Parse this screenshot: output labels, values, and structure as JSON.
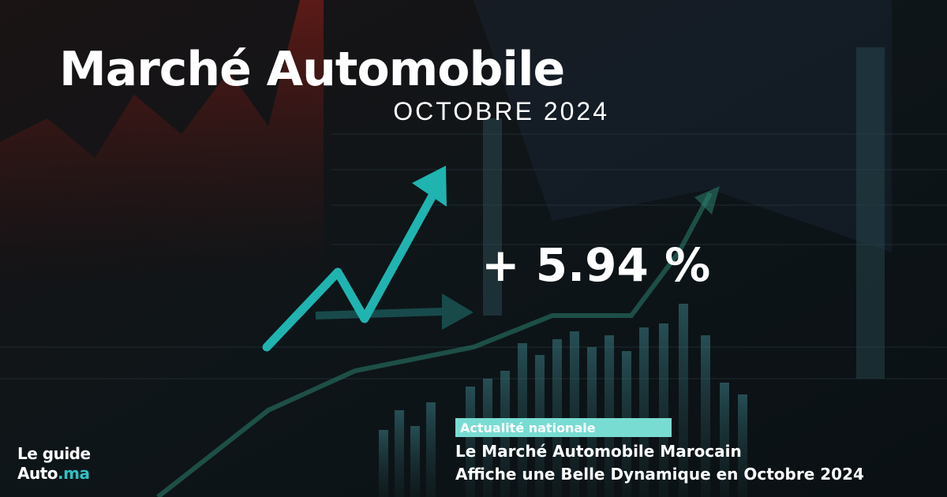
{
  "header": {
    "title": "Marché Automobile",
    "subtitle": "OCTOBRE 2024"
  },
  "highlight": "+ 5.94 %",
  "article": {
    "tag": "Actualité nationale",
    "headline": [
      "Le Marché Automobile Marocain",
      "Affiche une Belle Dynamique en Octobre 2024"
    ]
  },
  "logo": {
    "line1": "Le guide",
    "brand": "Auto",
    "suffix": ".ma"
  }
}
